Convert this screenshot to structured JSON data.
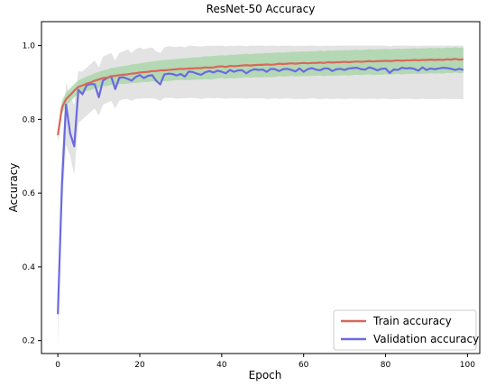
{
  "chart_data": {
    "type": "line",
    "title": "ResNet-50 Accuracy",
    "xlabel": "Epoch",
    "ylabel": "Accuracy",
    "xlim": [
      -4,
      103
    ],
    "ylim": [
      0.165,
      1.065
    ],
    "xticks": [
      0,
      20,
      40,
      60,
      80,
      100
    ],
    "yticks": [
      0.2,
      0.4,
      0.6,
      0.8,
      1.0
    ],
    "grid": false,
    "legend_position": "lower-right",
    "colors": {
      "train": "#d9675a",
      "validation": "#6a6ae0",
      "train_band": "#a8d4a8",
      "validation_band": "#d9d9d9"
    },
    "x": [
      0,
      1,
      2,
      3,
      4,
      5,
      6,
      7,
      8,
      9,
      10,
      11,
      12,
      13,
      14,
      15,
      16,
      17,
      18,
      19,
      20,
      21,
      22,
      23,
      24,
      25,
      26,
      27,
      28,
      29,
      30,
      31,
      32,
      33,
      34,
      35,
      36,
      37,
      38,
      39,
      40,
      41,
      42,
      43,
      44,
      45,
      46,
      47,
      48,
      49,
      50,
      51,
      52,
      53,
      54,
      55,
      56,
      57,
      58,
      59,
      60,
      61,
      62,
      63,
      64,
      65,
      66,
      67,
      68,
      69,
      70,
      71,
      72,
      73,
      74,
      75,
      76,
      77,
      78,
      79,
      80,
      81,
      82,
      83,
      84,
      85,
      86,
      87,
      88,
      89,
      90,
      91,
      92,
      93,
      94,
      95,
      96,
      97,
      98,
      99
    ],
    "series": [
      {
        "name": "Train accuracy",
        "values": [
          0.757,
          0.832,
          0.855,
          0.866,
          0.878,
          0.888,
          0.892,
          0.897,
          0.9,
          0.905,
          0.908,
          0.912,
          0.913,
          0.917,
          0.918,
          0.92,
          0.921,
          0.922,
          0.924,
          0.925,
          0.927,
          0.928,
          0.929,
          0.931,
          0.931,
          0.933,
          0.933,
          0.934,
          0.935,
          0.936,
          0.937,
          0.937,
          0.938,
          0.938,
          0.939,
          0.939,
          0.941,
          0.94,
          0.941,
          0.943,
          0.944,
          0.942,
          0.945,
          0.944,
          0.945,
          0.946,
          0.947,
          0.946,
          0.947,
          0.948,
          0.948,
          0.949,
          0.948,
          0.949,
          0.951,
          0.95,
          0.951,
          0.952,
          0.951,
          0.952,
          0.953,
          0.952,
          0.953,
          0.953,
          0.954,
          0.953,
          0.955,
          0.954,
          0.955,
          0.955,
          0.956,
          0.955,
          0.956,
          0.957,
          0.956,
          0.957,
          0.958,
          0.957,
          0.958,
          0.958,
          0.959,
          0.958,
          0.959,
          0.96,
          0.959,
          0.96,
          0.96,
          0.961,
          0.96,
          0.961,
          0.961,
          0.962,
          0.961,
          0.962,
          0.961,
          0.963,
          0.962,
          0.964,
          0.962,
          0.963
        ],
        "band_low": [
          0.74,
          0.815,
          0.838,
          0.848,
          0.86,
          0.869,
          0.873,
          0.877,
          0.879,
          0.884,
          0.886,
          0.89,
          0.89,
          0.894,
          0.894,
          0.896,
          0.896,
          0.897,
          0.898,
          0.899,
          0.9,
          0.901,
          0.901,
          0.903,
          0.902,
          0.904,
          0.904,
          0.904,
          0.905,
          0.906,
          0.907,
          0.906,
          0.907,
          0.907,
          0.908,
          0.908,
          0.909,
          0.908,
          0.909,
          0.911,
          0.912,
          0.91,
          0.912,
          0.911,
          0.912,
          0.913,
          0.914,
          0.913,
          0.914,
          0.914,
          0.914,
          0.915,
          0.914,
          0.915,
          0.917,
          0.916,
          0.917,
          0.918,
          0.916,
          0.917,
          0.918,
          0.917,
          0.918,
          0.918,
          0.919,
          0.917,
          0.919,
          0.918,
          0.919,
          0.919,
          0.92,
          0.919,
          0.92,
          0.921,
          0.92,
          0.921,
          0.922,
          0.92,
          0.921,
          0.921,
          0.922,
          0.921,
          0.922,
          0.923,
          0.922,
          0.923,
          0.923,
          0.924,
          0.923,
          0.924,
          0.924,
          0.925,
          0.924,
          0.925,
          0.924,
          0.926,
          0.925,
          0.927,
          0.925,
          0.926
        ],
        "band_high": [
          0.775,
          0.85,
          0.872,
          0.884,
          0.896,
          0.906,
          0.911,
          0.916,
          0.92,
          0.925,
          0.929,
          0.933,
          0.935,
          0.939,
          0.941,
          0.943,
          0.945,
          0.946,
          0.949,
          0.95,
          0.952,
          0.954,
          0.955,
          0.957,
          0.958,
          0.96,
          0.961,
          0.962,
          0.963,
          0.964,
          0.965,
          0.966,
          0.967,
          0.968,
          0.968,
          0.969,
          0.971,
          0.971,
          0.972,
          0.973,
          0.974,
          0.973,
          0.975,
          0.975,
          0.976,
          0.977,
          0.978,
          0.977,
          0.978,
          0.979,
          0.979,
          0.98,
          0.98,
          0.981,
          0.982,
          0.981,
          0.982,
          0.983,
          0.983,
          0.984,
          0.984,
          0.984,
          0.985,
          0.985,
          0.986,
          0.985,
          0.987,
          0.986,
          0.987,
          0.987,
          0.988,
          0.987,
          0.988,
          0.989,
          0.988,
          0.989,
          0.99,
          0.989,
          0.99,
          0.99,
          0.991,
          0.99,
          0.991,
          0.992,
          0.991,
          0.992,
          0.992,
          0.993,
          0.992,
          0.993,
          0.993,
          0.994,
          0.993,
          0.994,
          0.993,
          0.995,
          0.994,
          0.996,
          0.994,
          0.995
        ]
      },
      {
        "name": "Validation accuracy",
        "values": [
          0.272,
          0.625,
          0.84,
          0.762,
          0.727,
          0.88,
          0.868,
          0.892,
          0.896,
          0.895,
          0.86,
          0.905,
          0.912,
          0.917,
          0.882,
          0.913,
          0.914,
          0.91,
          0.905,
          0.915,
          0.92,
          0.912,
          0.918,
          0.92,
          0.905,
          0.895,
          0.922,
          0.924,
          0.923,
          0.919,
          0.923,
          0.916,
          0.93,
          0.928,
          0.924,
          0.921,
          0.928,
          0.931,
          0.927,
          0.932,
          0.929,
          0.925,
          0.934,
          0.929,
          0.933,
          0.933,
          0.925,
          0.932,
          0.936,
          0.934,
          0.935,
          0.929,
          0.937,
          0.936,
          0.931,
          0.936,
          0.937,
          0.934,
          0.93,
          0.938,
          0.929,
          0.936,
          0.939,
          0.935,
          0.933,
          0.938,
          0.938,
          0.931,
          0.936,
          0.937,
          0.934,
          0.938,
          0.939,
          0.94,
          0.936,
          0.935,
          0.941,
          0.938,
          0.933,
          0.937,
          0.938,
          0.926,
          0.935,
          0.934,
          0.94,
          0.938,
          0.939,
          0.937,
          0.932,
          0.941,
          0.934,
          0.938,
          0.936,
          0.938,
          0.94,
          0.939,
          0.937,
          0.934,
          0.937,
          0.934
        ],
        "band_low": [
          0.19,
          0.55,
          0.73,
          0.7,
          0.65,
          0.79,
          0.8,
          0.81,
          0.82,
          0.83,
          0.81,
          0.84,
          0.845,
          0.85,
          0.83,
          0.85,
          0.855,
          0.855,
          0.85,
          0.856,
          0.856,
          0.857,
          0.857,
          0.857,
          0.855,
          0.85,
          0.858,
          0.858,
          0.858,
          0.856,
          0.857,
          0.857,
          0.858,
          0.858,
          0.857,
          0.855,
          0.857,
          0.858,
          0.857,
          0.858,
          0.857,
          0.856,
          0.857,
          0.857,
          0.857,
          0.857,
          0.856,
          0.857,
          0.857,
          0.857,
          0.857,
          0.855,
          0.856,
          0.857,
          0.856,
          0.856,
          0.857,
          0.856,
          0.855,
          0.856,
          0.855,
          0.856,
          0.857,
          0.856,
          0.855,
          0.856,
          0.856,
          0.855,
          0.856,
          0.856,
          0.855,
          0.856,
          0.856,
          0.856,
          0.856,
          0.855,
          0.856,
          0.856,
          0.855,
          0.856,
          0.856,
          0.855,
          0.855,
          0.855,
          0.856,
          0.856,
          0.856,
          0.855,
          0.855,
          0.856,
          0.855,
          0.855,
          0.855,
          0.855,
          0.856,
          0.856,
          0.855,
          0.855,
          0.855,
          0.854
        ],
        "band_high": [
          0.35,
          0.7,
          0.9,
          0.86,
          0.84,
          0.93,
          0.93,
          0.94,
          0.95,
          0.96,
          0.94,
          0.97,
          0.975,
          0.98,
          0.96,
          0.98,
          0.985,
          0.99,
          0.98,
          0.99,
          0.995,
          0.99,
          0.993,
          0.995,
          0.985,
          0.98,
          0.995,
          0.998,
          0.997,
          0.996,
          0.998,
          0.995,
          1.0,
          0.999,
          0.998,
          0.997,
          0.999,
          1.0,
          0.999,
          1.0,
          1.0,
          0.998,
          1.0,
          0.999,
          1.0,
          1.0,
          0.998,
          1.0,
          1.0,
          1.0,
          1.0,
          0.999,
          1.0,
          1.0,
          0.999,
          1.0,
          1.0,
          1.0,
          0.999,
          1.0,
          0.999,
          1.0,
          1.0,
          1.0,
          0.999,
          1.0,
          1.0,
          0.999,
          1.0,
          1.0,
          1.0,
          1.0,
          1.0,
          1.0,
          1.0,
          1.0,
          1.0,
          1.0,
          1.0,
          1.0,
          1.0,
          0.998,
          1.0,
          1.0,
          1.0,
          1.0,
          1.0,
          1.0,
          0.999,
          1.0,
          1.0,
          1.0,
          1.0,
          1.0,
          1.0,
          1.0,
          1.0,
          1.0,
          1.0,
          1.0
        ]
      }
    ]
  }
}
